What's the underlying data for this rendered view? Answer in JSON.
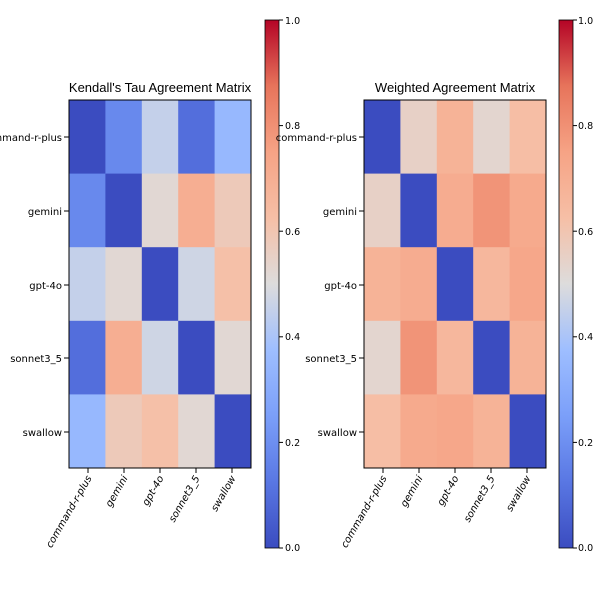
{
  "chart_data": [
    {
      "type": "heatmap",
      "title": "Kendall's Tau Agreement Matrix",
      "rows": [
        "command-r-plus",
        "gemini",
        "gpt-4o",
        "sonnet3_5",
        "swallow"
      ],
      "cols": [
        "command-r-plus",
        "gemini",
        "gpt-4o",
        "sonnet3_5",
        "swallow"
      ],
      "values": [
        [
          0.0,
          0.18,
          0.45,
          0.1,
          0.35
        ],
        [
          0.18,
          0.0,
          0.52,
          0.7,
          0.58
        ],
        [
          0.45,
          0.52,
          0.0,
          0.47,
          0.62
        ],
        [
          0.1,
          0.7,
          0.47,
          0.0,
          0.52
        ],
        [
          0.35,
          0.58,
          0.62,
          0.52,
          0.0
        ]
      ],
      "colorbar": {
        "min": 0.0,
        "max": 1.0,
        "ticks": [
          "0.0",
          "0.2",
          "0.4",
          "0.6",
          "0.8",
          "1.0"
        ]
      },
      "colormap": "coolwarm"
    },
    {
      "type": "heatmap",
      "title": "Weighted Agreement Matrix",
      "rows": [
        "command-r-plus",
        "gemini",
        "gpt-4o",
        "sonnet3_5",
        "swallow"
      ],
      "cols": [
        "command-r-plus",
        "gemini",
        "gpt-4o",
        "sonnet3_5",
        "swallow"
      ],
      "values": [
        [
          0.0,
          0.55,
          0.68,
          0.53,
          0.63
        ],
        [
          0.55,
          0.0,
          0.71,
          0.79,
          0.72
        ],
        [
          0.68,
          0.71,
          0.0,
          0.66,
          0.73
        ],
        [
          0.53,
          0.79,
          0.66,
          0.0,
          0.68
        ],
        [
          0.63,
          0.72,
          0.73,
          0.68,
          0.0
        ]
      ],
      "colorbar": {
        "min": 0.0,
        "max": 1.0,
        "ticks": [
          "0.0",
          "0.2",
          "0.4",
          "0.6",
          "0.8",
          "1.0"
        ]
      },
      "colormap": "coolwarm"
    }
  ]
}
